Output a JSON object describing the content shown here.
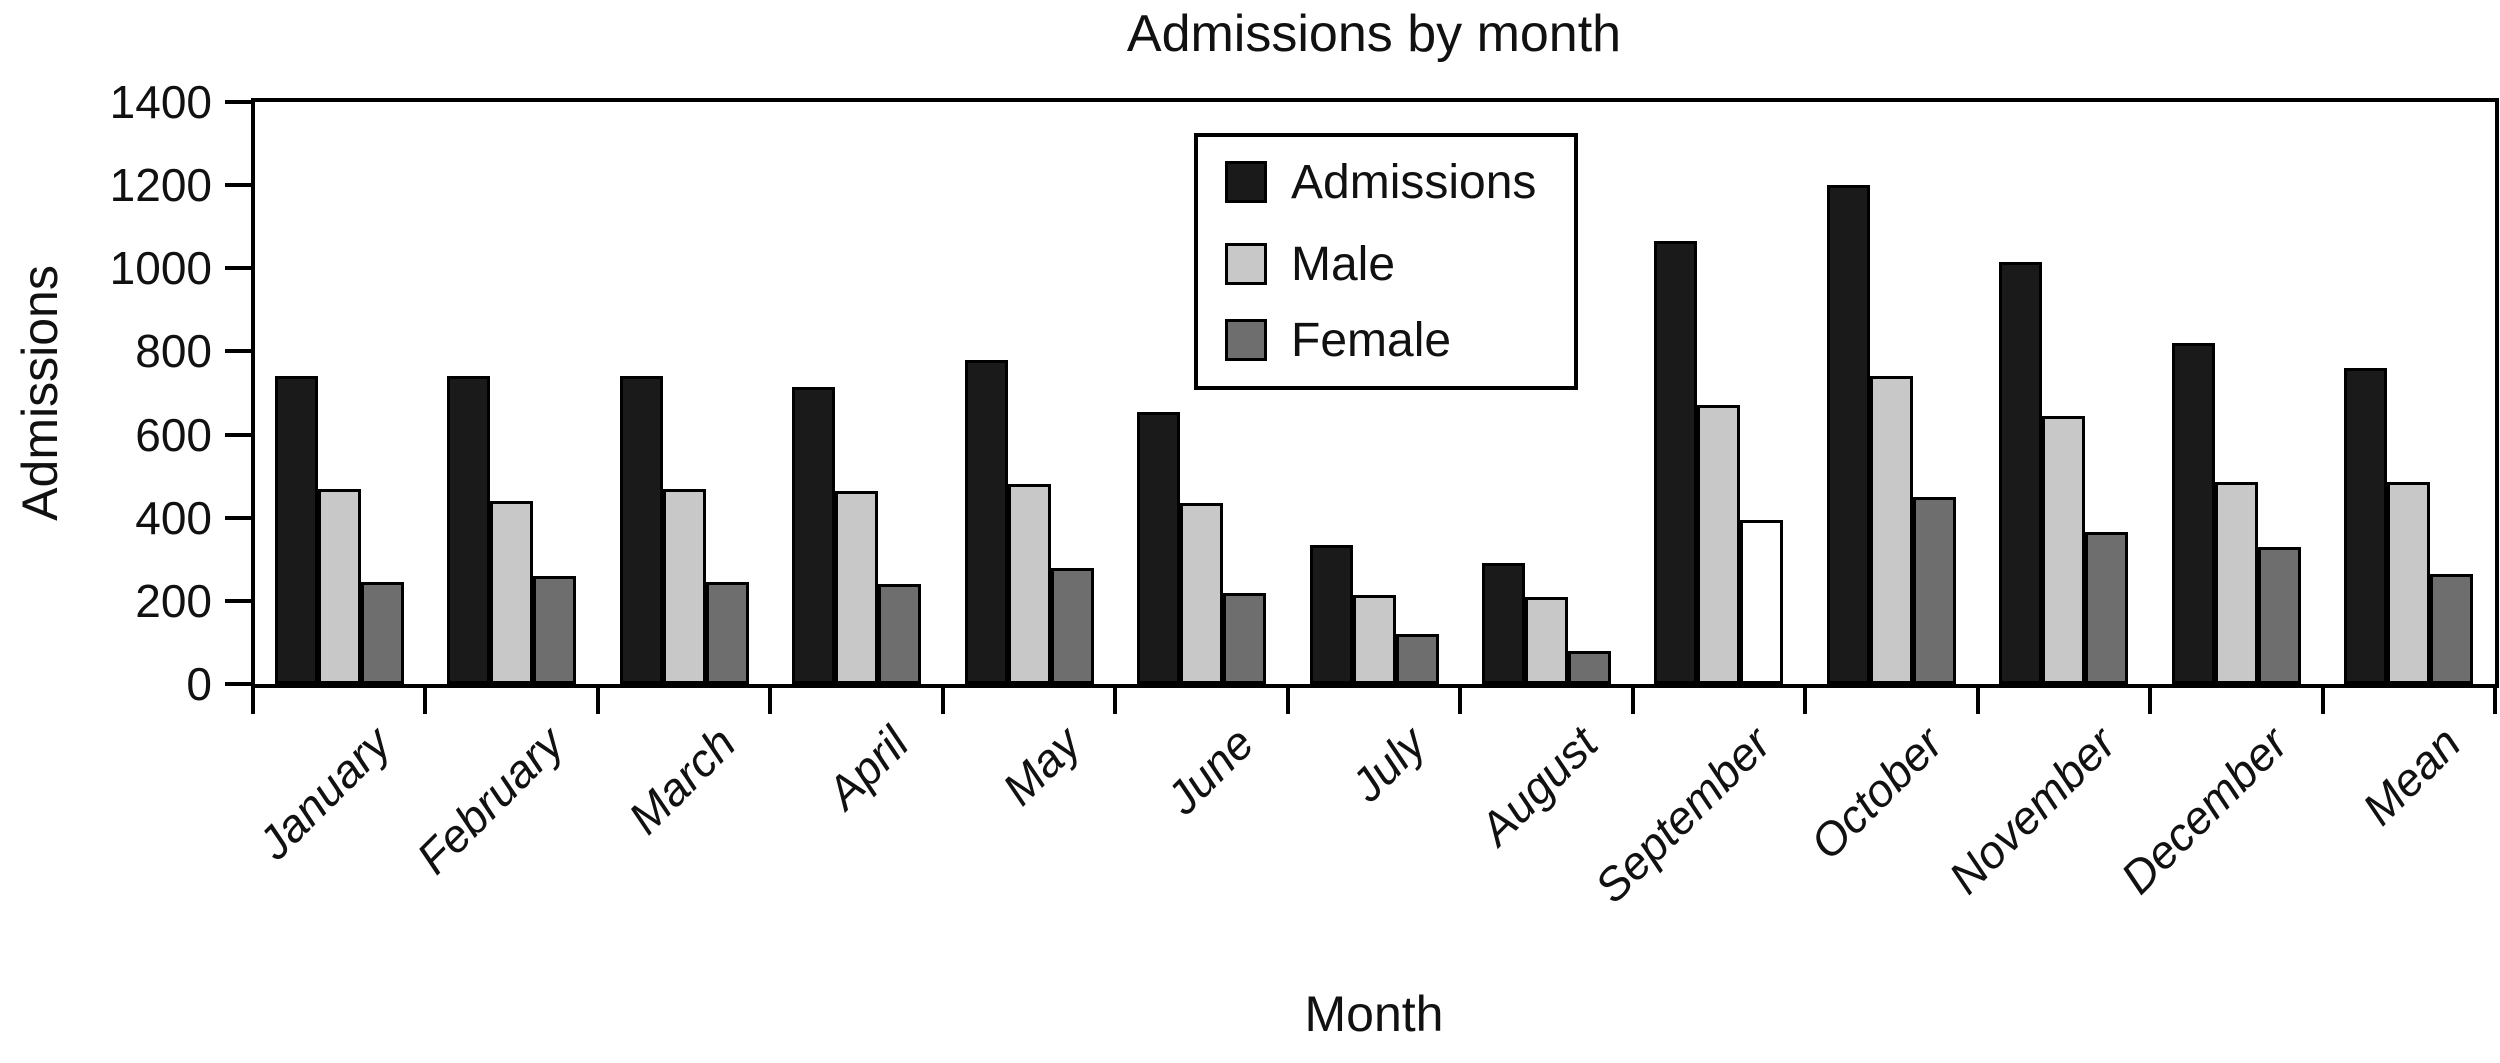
{
  "title": "Admissions by month",
  "y_axis": {
    "title": "Admissions"
  },
  "x_axis": {
    "title": "Month"
  },
  "legend": {
    "items": [
      {
        "label": "Admissions",
        "color": "#1a1a1a"
      },
      {
        "label": "Male",
        "color": "#c8c8c8"
      },
      {
        "label": "Female",
        "color": "#6e6e6e"
      }
    ]
  },
  "colors": {
    "axis": "#000000",
    "admissions_bar": "#1a1a1a",
    "male_bar": "#c8c8c8",
    "female_bar": "#6e6e6e",
    "september_female_bar": "#ffffff",
    "bar_border": "#000000",
    "background": "#ffffff"
  },
  "chart_data": {
    "type": "bar",
    "title": "Admissions by month",
    "xlabel": "Month",
    "ylabel": "Admissions",
    "ylim": [
      0,
      1400
    ],
    "yticks": [
      0,
      200,
      400,
      600,
      800,
      1000,
      1200,
      1400
    ],
    "grid": false,
    "legend_position": "upper center-left inside plot",
    "categories": [
      "January",
      "February",
      "March",
      "April",
      "May",
      "June",
      "July",
      "August",
      "September",
      "October",
      "November",
      "December",
      "Mean"
    ],
    "series": [
      {
        "name": "Admissions",
        "color": "#1a1a1a",
        "values": [
          740,
          740,
          740,
          715,
          780,
          655,
          335,
          290,
          1065,
          1200,
          1015,
          820,
          760
        ]
      },
      {
        "name": "Male",
        "color": "#c8c8c8",
        "values": [
          470,
          440,
          470,
          465,
          480,
          435,
          215,
          210,
          670,
          740,
          645,
          485,
          485
        ]
      },
      {
        "name": "Female",
        "color": "#6e6e6e",
        "values": [
          245,
          260,
          245,
          240,
          280,
          220,
          120,
          80,
          395,
          450,
          365,
          330,
          265
        ],
        "fill_overrides": {
          "September": "#ffffff"
        }
      }
    ]
  }
}
